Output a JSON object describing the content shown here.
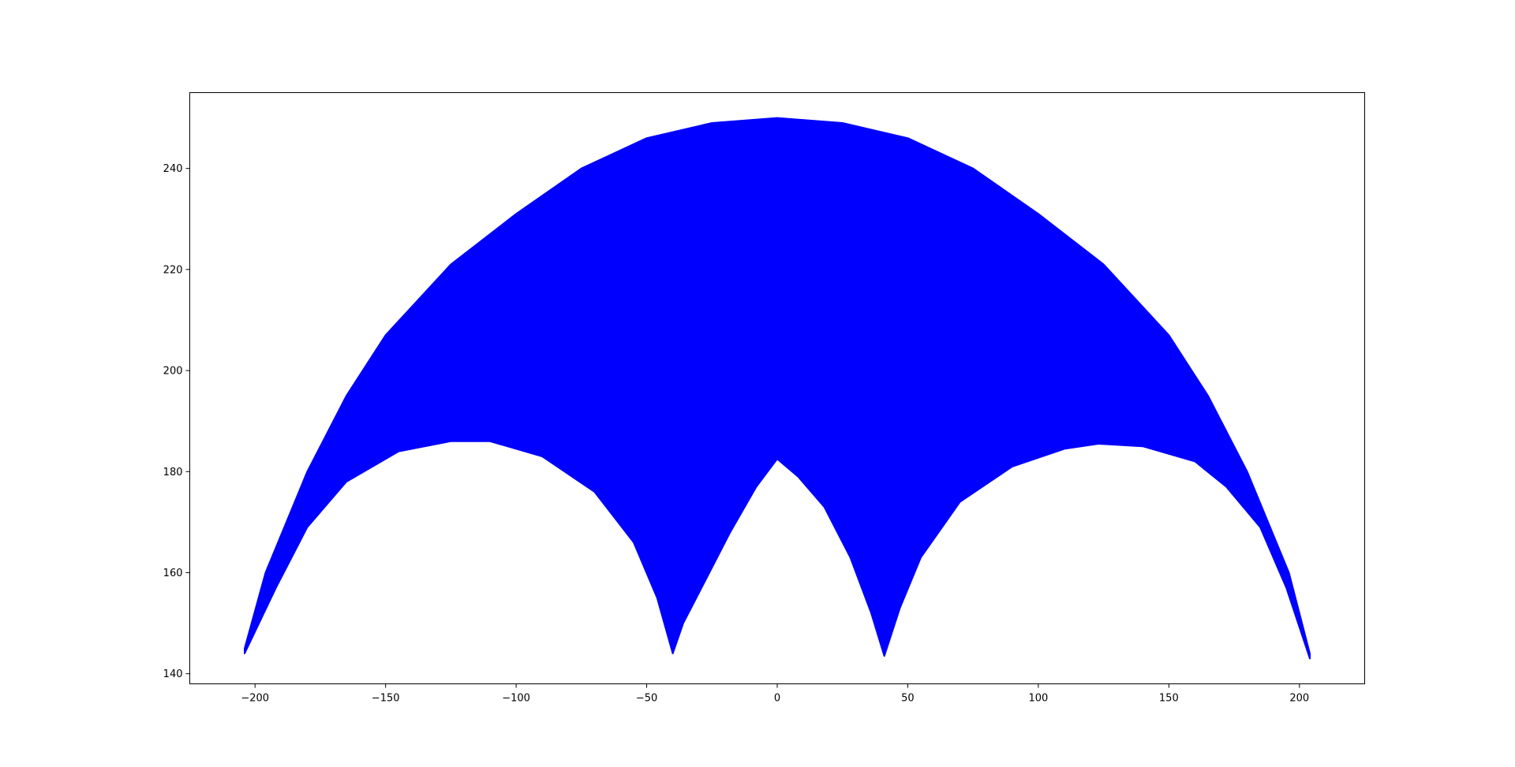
{
  "chart_data": {
    "type": "area",
    "title": "",
    "xlabel": "",
    "ylabel": "",
    "xlim": [
      -225,
      225
    ],
    "ylim": [
      138,
      255
    ],
    "x_ticks": [
      -200,
      -150,
      -100,
      -50,
      0,
      50,
      100,
      150,
      200
    ],
    "x_tick_labels": [
      "−200",
      "−150",
      "−100",
      "−50",
      "0",
      "50",
      "100",
      "150",
      "200"
    ],
    "y_ticks": [
      140,
      160,
      180,
      200,
      220,
      240
    ],
    "y_tick_labels": [
      "140",
      "160",
      "180",
      "200",
      "220",
      "240"
    ],
    "grid": false,
    "legend": "none",
    "fill_color": "#0000ff",
    "series": [
      {
        "name": "",
        "upper": [
          [
            -204,
            145
          ],
          [
            -196,
            160
          ],
          [
            -180,
            180
          ],
          [
            -165,
            195
          ],
          [
            -150,
            207
          ],
          [
            -125,
            221
          ],
          [
            -100,
            231
          ],
          [
            -75,
            240
          ],
          [
            -50,
            246
          ],
          [
            -25,
            249
          ],
          [
            0,
            250
          ],
          [
            25,
            249
          ],
          [
            50,
            246
          ],
          [
            75,
            240
          ],
          [
            100,
            231
          ],
          [
            125,
            221
          ],
          [
            150,
            207
          ],
          [
            165,
            195
          ],
          [
            180,
            180
          ],
          [
            196,
            160
          ],
          [
            204,
            144
          ]
        ],
        "lower": [
          [
            204,
            143
          ],
          [
            195,
            157
          ],
          [
            185,
            169
          ],
          [
            172,
            177
          ],
          [
            160,
            182
          ],
          [
            140,
            185
          ],
          [
            123,
            185.5
          ],
          [
            110,
            184.5
          ],
          [
            90,
            181
          ],
          [
            70,
            174
          ],
          [
            55,
            163
          ],
          [
            47,
            153
          ],
          [
            41,
            143.5
          ],
          [
            36,
            152
          ],
          [
            28,
            163
          ],
          [
            18,
            173
          ],
          [
            8,
            179
          ],
          [
            0,
            182.5
          ],
          [
            -8,
            177
          ],
          [
            -18,
            168
          ],
          [
            -28,
            158
          ],
          [
            -36,
            150
          ],
          [
            -40,
            144
          ],
          [
            -46,
            155
          ],
          [
            -55,
            166
          ],
          [
            -70,
            176
          ],
          [
            -90,
            183
          ],
          [
            -110,
            186
          ],
          [
            -125,
            186
          ],
          [
            -145,
            184
          ],
          [
            -165,
            178
          ],
          [
            -180,
            169
          ],
          [
            -192,
            157
          ],
          [
            -204,
            144
          ]
        ]
      }
    ]
  }
}
